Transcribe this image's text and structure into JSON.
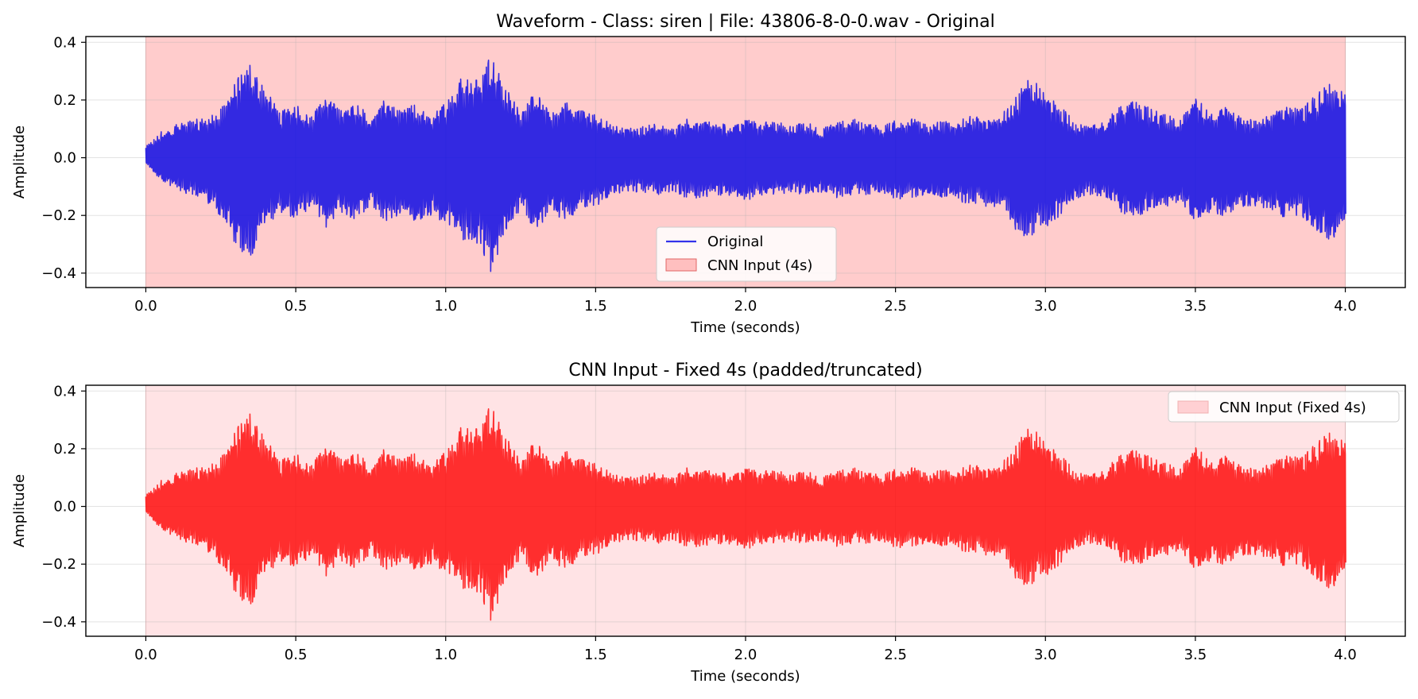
{
  "chart_data": [
    {
      "type": "line",
      "title": "Waveform - Class: siren | File: 43806-8-0-0.wav - Original",
      "xlabel": "Time (seconds)",
      "ylabel": "Amplitude",
      "xlim": [
        -0.2,
        4.2
      ],
      "ylim": [
        -0.45,
        0.42
      ],
      "xticks": [
        0.0,
        0.5,
        1.0,
        1.5,
        2.0,
        2.5,
        3.0,
        3.5,
        4.0
      ],
      "xtick_labels": [
        "0.0",
        "0.5",
        "1.0",
        "1.5",
        "2.0",
        "2.5",
        "3.0",
        "3.5",
        "4.0"
      ],
      "yticks": [
        -0.4,
        -0.2,
        0.0,
        0.2,
        0.4
      ],
      "ytick_labels": [
        "−0.4",
        "−0.2",
        "0.0",
        "0.2",
        "0.4"
      ],
      "grid": true,
      "legend_position": "bottom-center",
      "series": [
        {
          "name": "Original",
          "color": "#0000e6",
          "envelope": {
            "x": [
              0.0,
              0.05,
              0.1,
              0.15,
              0.2,
              0.25,
              0.3,
              0.35,
              0.4,
              0.45,
              0.5,
              0.55,
              0.6,
              0.65,
              0.7,
              0.75,
              0.8,
              0.85,
              0.9,
              0.95,
              1.0,
              1.05,
              1.1,
              1.15,
              1.2,
              1.25,
              1.3,
              1.35,
              1.4,
              1.45,
              1.5,
              1.55,
              1.6,
              1.65,
              1.7,
              1.75,
              1.8,
              1.85,
              1.9,
              1.95,
              2.0,
              2.05,
              2.1,
              2.15,
              2.2,
              2.25,
              2.3,
              2.35,
              2.4,
              2.45,
              2.5,
              2.55,
              2.6,
              2.65,
              2.7,
              2.75,
              2.8,
              2.85,
              2.9,
              2.95,
              3.0,
              3.05,
              3.1,
              3.15,
              3.2,
              3.25,
              3.3,
              3.35,
              3.4,
              3.45,
              3.5,
              3.55,
              3.6,
              3.65,
              3.7,
              3.75,
              3.8,
              3.85,
              3.9,
              3.95,
              4.0
            ],
            "upper": [
              0.04,
              0.09,
              0.12,
              0.13,
              0.14,
              0.17,
              0.27,
              0.33,
              0.23,
              0.16,
              0.19,
              0.15,
              0.21,
              0.17,
              0.2,
              0.13,
              0.21,
              0.16,
              0.19,
              0.14,
              0.2,
              0.28,
              0.3,
              0.36,
              0.24,
              0.17,
              0.23,
              0.15,
              0.2,
              0.17,
              0.15,
              0.12,
              0.1,
              0.11,
              0.12,
              0.1,
              0.14,
              0.12,
              0.13,
              0.11,
              0.14,
              0.12,
              0.13,
              0.11,
              0.13,
              0.1,
              0.12,
              0.14,
              0.12,
              0.11,
              0.13,
              0.14,
              0.12,
              0.13,
              0.12,
              0.15,
              0.13,
              0.15,
              0.22,
              0.28,
              0.22,
              0.18,
              0.12,
              0.11,
              0.13,
              0.18,
              0.2,
              0.17,
              0.15,
              0.13,
              0.21,
              0.16,
              0.18,
              0.14,
              0.13,
              0.15,
              0.19,
              0.17,
              0.22,
              0.26,
              0.22
            ],
            "lower": [
              -0.02,
              -0.08,
              -0.11,
              -0.13,
              -0.15,
              -0.21,
              -0.31,
              -0.35,
              -0.24,
              -0.19,
              -0.21,
              -0.18,
              -0.25,
              -0.19,
              -0.22,
              -0.17,
              -0.23,
              -0.19,
              -0.23,
              -0.2,
              -0.23,
              -0.29,
              -0.3,
              -0.41,
              -0.26,
              -0.18,
              -0.25,
              -0.2,
              -0.22,
              -0.18,
              -0.17,
              -0.13,
              -0.12,
              -0.12,
              -0.13,
              -0.12,
              -0.14,
              -0.14,
              -0.13,
              -0.13,
              -0.15,
              -0.13,
              -0.13,
              -0.12,
              -0.13,
              -0.12,
              -0.14,
              -0.13,
              -0.13,
              -0.12,
              -0.15,
              -0.14,
              -0.13,
              -0.14,
              -0.15,
              -0.16,
              -0.17,
              -0.18,
              -0.25,
              -0.29,
              -0.24,
              -0.2,
              -0.14,
              -0.13,
              -0.14,
              -0.19,
              -0.21,
              -0.18,
              -0.17,
              -0.15,
              -0.22,
              -0.19,
              -0.21,
              -0.17,
              -0.17,
              -0.18,
              -0.21,
              -0.2,
              -0.25,
              -0.29,
              -0.23
            ]
          }
        },
        {
          "name": "CNN Input (4s)",
          "type": "span",
          "x_range": [
            0.0,
            4.0
          ],
          "color": "#ff9999"
        }
      ]
    },
    {
      "type": "line",
      "title": "CNN Input - Fixed 4s (padded/truncated)",
      "xlabel": "Time (seconds)",
      "ylabel": "Amplitude",
      "xlim": [
        -0.2,
        4.2
      ],
      "ylim": [
        -0.45,
        0.42
      ],
      "xticks": [
        0.0,
        0.5,
        1.0,
        1.5,
        2.0,
        2.5,
        3.0,
        3.5,
        4.0
      ],
      "xtick_labels": [
        "0.0",
        "0.5",
        "1.0",
        "1.5",
        "2.0",
        "2.5",
        "3.0",
        "3.5",
        "4.0"
      ],
      "yticks": [
        -0.4,
        -0.2,
        0.0,
        0.2,
        0.4
      ],
      "ytick_labels": [
        "−0.4",
        "−0.2",
        "0.0",
        "0.2",
        "0.4"
      ],
      "grid": true,
      "legend_position": "top-right",
      "series": [
        {
          "name": "CNN Input (Fixed 4s)",
          "type": "span",
          "x_range": [
            0.0,
            4.0
          ],
          "color": "#ffd0d3"
        },
        {
          "color": "#ff0000",
          "same_signal_as": "Original"
        }
      ]
    }
  ]
}
